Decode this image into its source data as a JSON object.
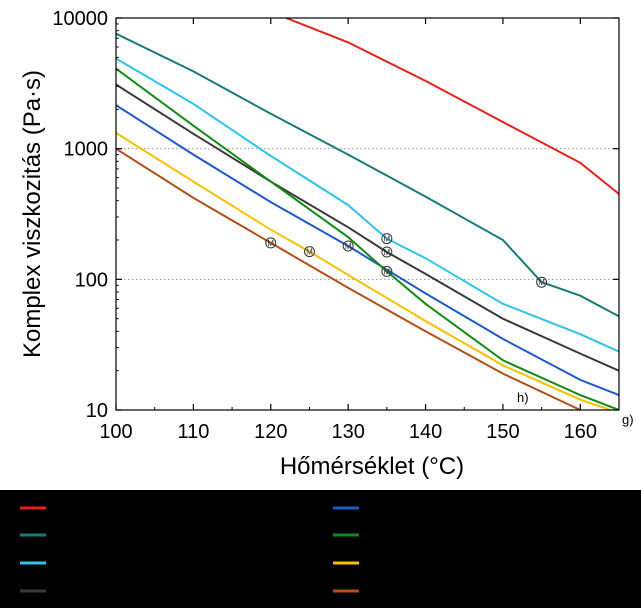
{
  "chart_data": {
    "type": "line",
    "xlabel": "Hőmérséklet (°C)",
    "ylabel": "Komplex viszkozitás (Pa·s)",
    "x_scale": "linear",
    "y_scale": "log",
    "xlim": [
      100,
      165
    ],
    "ylim": [
      10,
      10000
    ],
    "x_ticks": [
      100,
      110,
      120,
      130,
      140,
      150,
      160
    ],
    "x_tick_labels": [
      "100",
      "110",
      "120",
      "130",
      "140",
      "150",
      "160"
    ],
    "y_ticks": [
      10,
      100,
      1000,
      10000
    ],
    "y_tick_labels": [
      "10",
      "100",
      "1000",
      "10000"
    ],
    "grid": "horizontal dotted at 100 and 1000",
    "legend": "below plot, two columns, labels not legible",
    "marker_label": "M",
    "series": [
      {
        "color": "#e8201c",
        "x": [
          122,
          130,
          140,
          150,
          160,
          165
        ],
        "y": [
          10000,
          6500,
          3300,
          1600,
          780,
          450
        ],
        "markers": []
      },
      {
        "color": "#1a7a7a",
        "x": [
          100,
          110,
          120,
          130,
          140,
          150,
          155,
          160,
          165
        ],
        "y": [
          7600,
          3900,
          1850,
          900,
          430,
          200,
          95,
          75,
          52
        ],
        "markers": [
          [
            155,
            95
          ]
        ]
      },
      {
        "color": "#2ec3e8",
        "x": [
          100,
          110,
          120,
          130,
          135,
          140,
          150,
          160,
          165
        ],
        "y": [
          4900,
          2200,
          880,
          370,
          205,
          145,
          65,
          38,
          28
        ],
        "markers": [
          [
            135,
            205
          ]
        ]
      },
      {
        "color": "#3a3a3a",
        "x": [
          100,
          110,
          120,
          130,
          135,
          140,
          150,
          160,
          165
        ],
        "y": [
          3100,
          1300,
          560,
          250,
          162,
          110,
          50,
          27,
          20
        ],
        "markers": [
          [
            135,
            162
          ]
        ]
      },
      {
        "color": "#1f5ac8",
        "x": [
          100,
          110,
          120,
          130,
          140,
          150,
          160,
          165
        ],
        "y": [
          2150,
          900,
          390,
          180,
          78,
          35,
          17,
          13
        ],
        "markers": [
          [
            130,
            180
          ]
        ]
      },
      {
        "color": "#138a13",
        "x": [
          100,
          110,
          120,
          130,
          135,
          140,
          150,
          160,
          165
        ],
        "y": [
          4100,
          1500,
          560,
          210,
          115,
          65,
          24,
          13,
          10
        ],
        "markers": [
          [
            135,
            115
          ]
        ]
      },
      {
        "color": "#f5c000",
        "x": [
          100,
          110,
          120,
          125,
          130,
          140,
          150,
          160,
          165
        ],
        "y": [
          1320,
          560,
          240,
          163,
          108,
          48,
          22,
          12,
          9.5
        ],
        "markers": [
          [
            125,
            163
          ]
        ]
      },
      {
        "color": "#b0501a",
        "x": [
          100,
          110,
          120,
          130,
          140,
          150,
          160
        ],
        "y": [
          1000,
          420,
          190,
          86,
          40,
          19,
          10
        ],
        "markers": [
          [
            120,
            190
          ]
        ]
      }
    ],
    "annotations": [
      "h)",
      "g)"
    ]
  }
}
